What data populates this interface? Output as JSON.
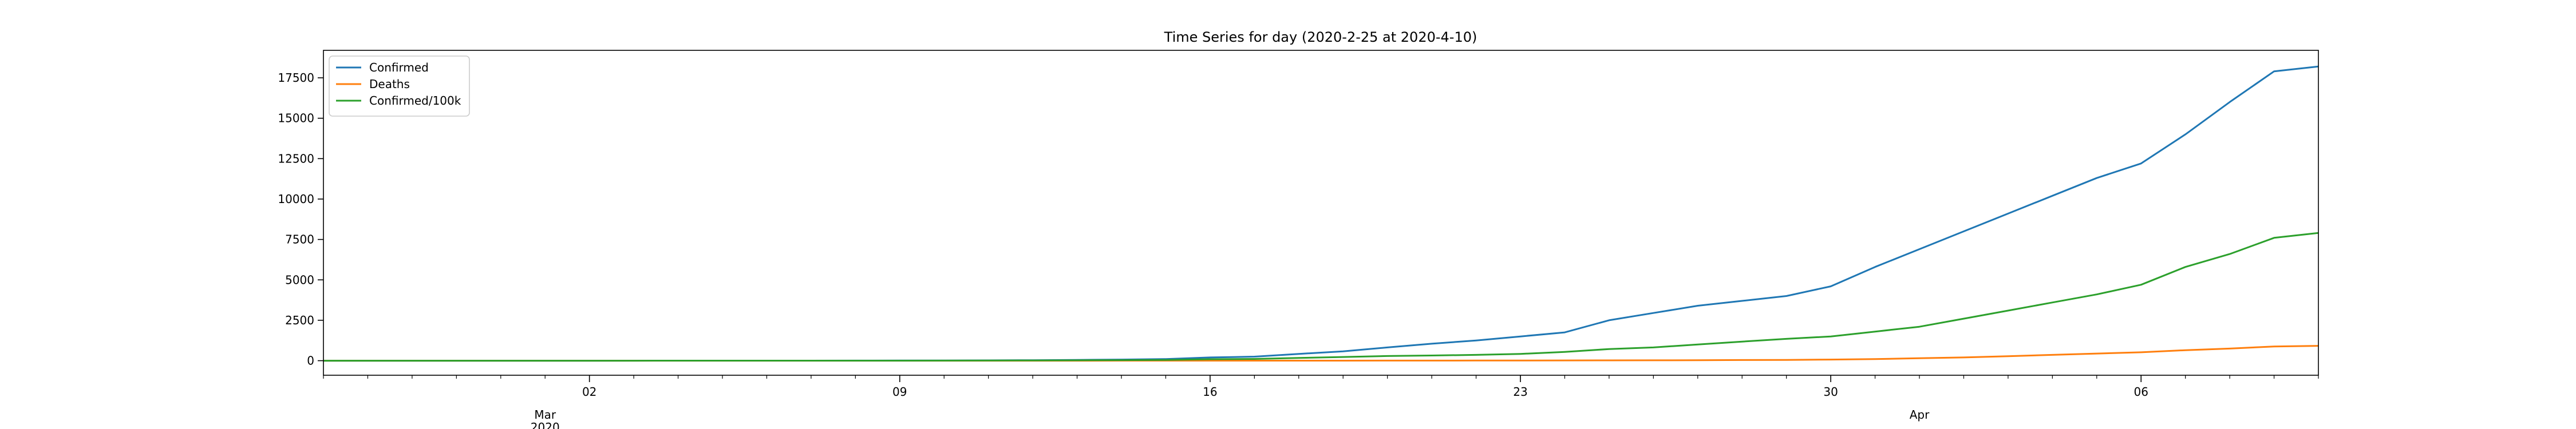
{
  "chart_data": {
    "type": "line",
    "title": "Time Series for day (2020-2-25 at 2020-4-10)",
    "xlabel": "",
    "ylabel": "",
    "x": [
      "2020-02-25",
      "2020-02-26",
      "2020-02-27",
      "2020-02-28",
      "2020-02-29",
      "2020-03-01",
      "2020-03-02",
      "2020-03-03",
      "2020-03-04",
      "2020-03-05",
      "2020-03-06",
      "2020-03-07",
      "2020-03-08",
      "2020-03-09",
      "2020-03-10",
      "2020-03-11",
      "2020-03-12",
      "2020-03-13",
      "2020-03-14",
      "2020-03-15",
      "2020-03-16",
      "2020-03-17",
      "2020-03-18",
      "2020-03-19",
      "2020-03-20",
      "2020-03-21",
      "2020-03-22",
      "2020-03-23",
      "2020-03-24",
      "2020-03-25",
      "2020-03-26",
      "2020-03-27",
      "2020-03-28",
      "2020-03-29",
      "2020-03-30",
      "2020-03-31",
      "2020-04-01",
      "2020-04-02",
      "2020-04-03",
      "2020-04-04",
      "2020-04-05",
      "2020-04-06",
      "2020-04-07",
      "2020-04-08",
      "2020-04-09",
      "2020-04-10"
    ],
    "xlim": [
      "2020-02-25",
      "2020-04-10"
    ],
    "ylim": [
      -900,
      19200
    ],
    "yticks": [
      0,
      2500,
      5000,
      7500,
      10000,
      12500,
      15000,
      17500
    ],
    "ytick_labels": [
      "0",
      "2500",
      "5000",
      "7500",
      "10000",
      "12500",
      "15000",
      "17500"
    ],
    "xticks": [
      "2020-03-02",
      "2020-03-09",
      "2020-03-16",
      "2020-03-23",
      "2020-03-30",
      "2020-04-06"
    ],
    "xtick_labels": [
      "02",
      "09",
      "16",
      "23",
      "30",
      "06"
    ],
    "xtick_month_labels": [
      {
        "date": "2020-03-01",
        "label": "Mar",
        "sublabel": "2020"
      },
      {
        "date": "2020-04-01",
        "label": "Apr",
        "sublabel": ""
      }
    ],
    "grid": false,
    "legend_position": "upper-left",
    "series": [
      {
        "name": "Confirmed",
        "color": "#1f77b4",
        "values": [
          0,
          0,
          0,
          0,
          0,
          0,
          0,
          1,
          1,
          2,
          2,
          3,
          5,
          8,
          12,
          20,
          30,
          50,
          70,
          100,
          200,
          250,
          420,
          580,
          820,
          1050,
          1250,
          1500,
          1750,
          2500,
          2950,
          3400,
          3700,
          4000,
          4600,
          5800,
          6900,
          8000,
          9100,
          10200,
          11300,
          12200,
          14000,
          16000,
          17900,
          18200
        ]
      },
      {
        "name": "Deaths",
        "color": "#ff7f0e",
        "values": [
          0,
          0,
          0,
          0,
          0,
          0,
          0,
          0,
          0,
          0,
          0,
          0,
          0,
          0,
          0,
          0,
          0,
          0,
          1,
          1,
          2,
          2,
          3,
          4,
          5,
          6,
          8,
          10,
          15,
          20,
          25,
          30,
          40,
          50,
          70,
          100,
          150,
          200,
          280,
          360,
          440,
          520,
          650,
          750,
          880,
          920
        ]
      },
      {
        "name": "Confirmed/100k",
        "color": "#2ca02c",
        "values": [
          0,
          0,
          0,
          0,
          0,
          0,
          0,
          0,
          1,
          1,
          1,
          1,
          2,
          4,
          6,
          10,
          16,
          25,
          35,
          50,
          90,
          110,
          170,
          230,
          290,
          320,
          360,
          420,
          540,
          720,
          820,
          1000,
          1180,
          1350,
          1500,
          1800,
          2100,
          2600,
          3100,
          3600,
          4100,
          4700,
          5800,
          6600,
          7600,
          7900
        ]
      }
    ]
  }
}
